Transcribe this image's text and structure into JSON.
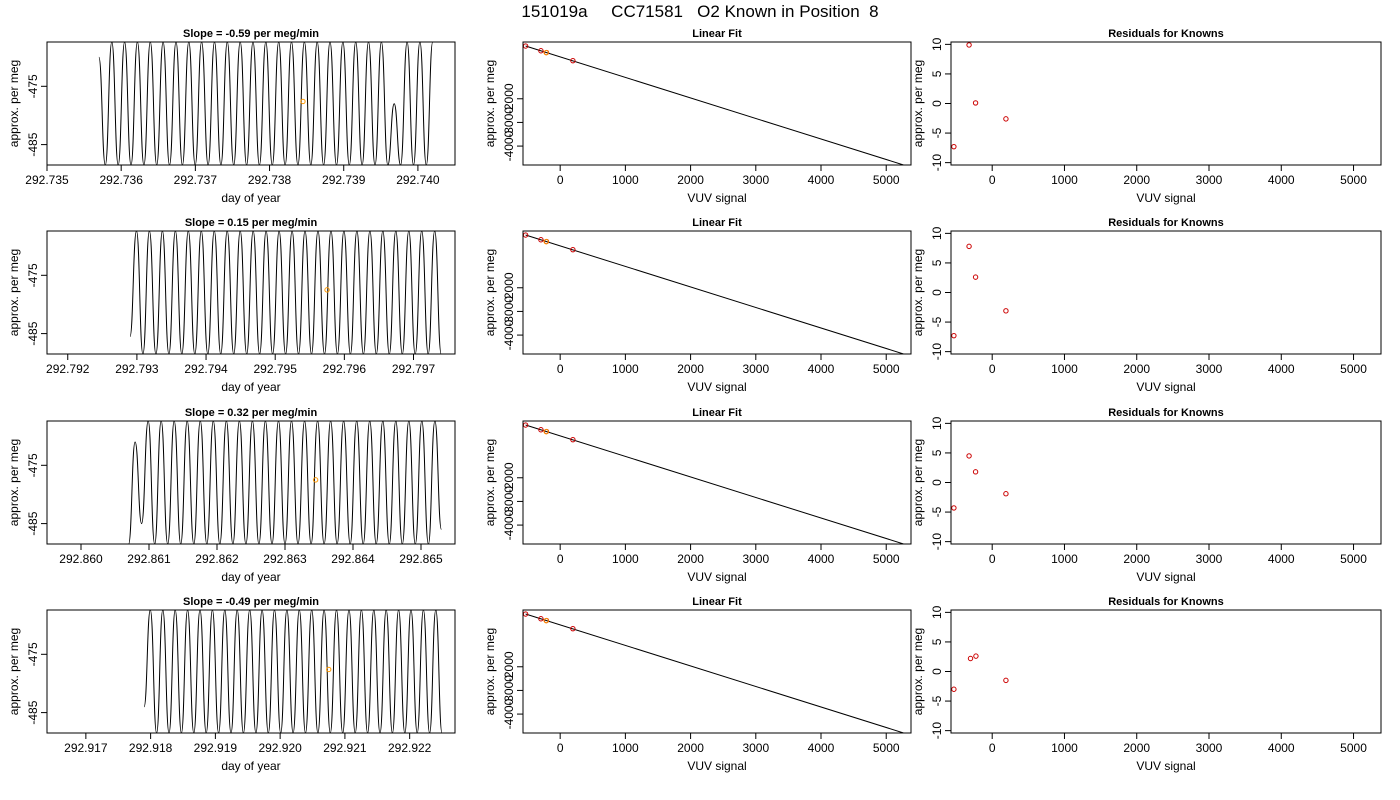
{
  "page": {
    "title": "151019a     CC71581   O2 Known in Position  8"
  },
  "chart_data": [
    {
      "type": "line",
      "row": 1,
      "column": "time_series",
      "title": "Slope =  -0.59  per meg/min",
      "xlabel": "day of year",
      "ylabel": "approx. per meg",
      "xlim": [
        292.735,
        292.7405
      ],
      "ylim": [
        -488.5,
        -467.4
      ],
      "xticks": [
        "292.735",
        "292.736",
        "292.737",
        "292.738",
        "292.739",
        "292.740"
      ],
      "yticks": [
        "-475",
        "-485"
      ],
      "x_start": 292.7357,
      "x_end": 292.7402,
      "series": [
        {
          "line_color": "#000000",
          "values": [
            -470,
            -488.5,
            -467.4,
            -488.5,
            -467.4,
            -488.5,
            -467.4,
            -488.5,
            -467.4,
            -488.5,
            -467.4,
            -488.5,
            -467.4,
            -488.5,
            -467.4,
            -488.5,
            -467.4,
            -488.5,
            -467.4,
            -488.5,
            -467.4,
            -488.5,
            -467.4,
            -488.5,
            -467.4,
            -488.5,
            -467.4,
            -488.5,
            -467.4,
            -488.5,
            -467.4,
            -488.5,
            -467.4,
            -488.5,
            -467.4,
            -488.5,
            -467.4,
            -488.5,
            -467.4,
            -488.5,
            -467.4,
            -488.5,
            -467.4,
            -488.5,
            -467.4,
            -488.5,
            -478,
            -488.5,
            -467.4,
            -488.5,
            -467.4,
            -488.5,
            -467.4
          ]
        }
      ],
      "marker": {
        "x": 292.73845,
        "y": -477.6,
        "color": "#ff9900"
      }
    },
    {
      "type": "scatter",
      "row": 1,
      "column": "linear_fit",
      "title": "Linear Fit",
      "xlabel": "VUV signal",
      "ylabel": "approx. per meg",
      "xlim": [
        -570,
        5380
      ],
      "ylim": [
        -4800,
        400
      ],
      "xticks": [
        0,
        1000,
        2000,
        3000,
        4000,
        5000
      ],
      "yticks": [
        -2000,
        -3000,
        -4000
      ],
      "fit_line": {
        "x": [
          -530,
          5290
        ],
        "y": [
          230,
          -4820
        ]
      },
      "points": [
        {
          "x": -530,
          "y": 230
        },
        {
          "x": -295,
          "y": 30
        },
        {
          "x": -210,
          "y": -45
        },
        {
          "x": 195,
          "y": -390
        }
      ],
      "highlight": {
        "x": -215,
        "y": -50,
        "color": "#ff9900"
      }
    },
    {
      "type": "scatter",
      "row": 1,
      "column": "residuals",
      "title": "Residuals for Knowns",
      "xlabel": "VUV signal",
      "ylabel": "approx. per meg",
      "xlim": [
        -570,
        5380
      ],
      "ylim": [
        -10.4,
        10.4
      ],
      "xticks": [
        0,
        1000,
        2000,
        3000,
        4000,
        5000
      ],
      "yticks": [
        10,
        5,
        0,
        -5,
        -10
      ],
      "points": [
        {
          "x": -530,
          "y": -7.3
        },
        {
          "x": -320,
          "y": 9.9
        },
        {
          "x": -230,
          "y": 0.1
        },
        {
          "x": 190,
          "y": -2.6
        }
      ]
    },
    {
      "type": "line",
      "row": 2,
      "column": "time_series",
      "title": "Slope =  0.15  per meg/min",
      "xlabel": "day of year",
      "ylabel": "approx. per meg",
      "xlim": [
        292.7917,
        292.7976
      ],
      "ylim": [
        -488.5,
        -467.4
      ],
      "xticks": [
        "292.792",
        "292.793",
        "292.794",
        "292.795",
        "292.796",
        "292.797"
      ],
      "yticks": [
        "-475",
        "-485"
      ],
      "x_start": 292.7929,
      "x_end": 292.7974,
      "series": [
        {
          "line_color": "#000000",
          "values": [
            -485.5,
            -467.4,
            -488.5,
            -467.4,
            -488.5,
            -467.4,
            -488.5,
            -467.4,
            -488.5,
            -467.4,
            -488.5,
            -467.4,
            -488.5,
            -467.4,
            -488.5,
            -467.4,
            -488.5,
            -467.4,
            -488.5,
            -467.4,
            -488.5,
            -467.4,
            -488.5,
            -467.4,
            -488.5,
            -467.4,
            -488.5,
            -467.4,
            -488.5,
            -467.4,
            -488.5,
            -467.4,
            -488.5,
            -467.4,
            -488.5,
            -467.4,
            -488.5,
            -467.4,
            -488.5,
            -467.4,
            -488.5,
            -467.4,
            -488.5,
            -467.4,
            -488.5,
            -467.4,
            -488.5,
            -467.4,
            -488.5
          ]
        }
      ],
      "marker": {
        "x": 292.79575,
        "y": -477.5,
        "color": "#ff9900"
      }
    },
    {
      "type": "scatter",
      "row": 2,
      "column": "linear_fit",
      "title": "Linear Fit",
      "xlabel": "VUV signal",
      "ylabel": "approx. per meg",
      "xlim": [
        -570,
        5380
      ],
      "ylim": [
        -4800,
        400
      ],
      "xticks": [
        0,
        1000,
        2000,
        3000,
        4000,
        5000
      ],
      "yticks": [
        -2000,
        -3000,
        -4000
      ],
      "fit_line": {
        "x": [
          -530,
          5290
        ],
        "y": [
          230,
          -4820
        ]
      },
      "points": [
        {
          "x": -530,
          "y": 230
        },
        {
          "x": -295,
          "y": 30
        },
        {
          "x": -210,
          "y": -45
        },
        {
          "x": 195,
          "y": -390
        }
      ],
      "highlight": {
        "x": -215,
        "y": -50,
        "color": "#ff9900"
      }
    },
    {
      "type": "scatter",
      "row": 2,
      "column": "residuals",
      "title": "Residuals for Knowns",
      "xlabel": "VUV signal",
      "ylabel": "approx. per meg",
      "xlim": [
        -570,
        5380
      ],
      "ylim": [
        -10.4,
        10.4
      ],
      "xticks": [
        0,
        1000,
        2000,
        3000,
        4000,
        5000
      ],
      "yticks": [
        10,
        5,
        0,
        -5,
        -10
      ],
      "points": [
        {
          "x": -530,
          "y": -7.3
        },
        {
          "x": -320,
          "y": 7.8
        },
        {
          "x": -230,
          "y": 2.6
        },
        {
          "x": 190,
          "y": -3.1
        }
      ]
    },
    {
      "type": "line",
      "row": 3,
      "column": "time_series",
      "title": "Slope =  0.32  per meg/min",
      "xlabel": "day of year",
      "ylabel": "approx. per meg",
      "xlim": [
        292.8595,
        292.8655
      ],
      "ylim": [
        -488.5,
        -467.4
      ],
      "xticks": [
        "292.860",
        "292.861",
        "292.862",
        "292.863",
        "292.864",
        "292.865"
      ],
      "yticks": [
        "-475",
        "-485"
      ],
      "x_start": 292.8607,
      "x_end": 292.8653,
      "series": [
        {
          "line_color": "#000000",
          "values": [
            -488.5,
            -471,
            -485,
            -467.4,
            -488.5,
            -467.4,
            -488.5,
            -467.4,
            -488.5,
            -467.4,
            -488.5,
            -467.4,
            -488.5,
            -467.4,
            -488.5,
            -467.4,
            -488.5,
            -467.4,
            -488.5,
            -467.4,
            -488.5,
            -467.4,
            -488.5,
            -467.4,
            -488.5,
            -467.4,
            -488.5,
            -467.4,
            -488.5,
            -467.4,
            -488.5,
            -467.4,
            -488.5,
            -467.4,
            -488.5,
            -467.4,
            -488.5,
            -467.4,
            -488.5,
            -467.4,
            -488.5,
            -467.4,
            -488.5,
            -467.4,
            -488.5,
            -467.4,
            -488.5,
            -467.4,
            -486
          ]
        }
      ],
      "marker": {
        "x": 292.86345,
        "y": -477.5,
        "color": "#ff9900"
      }
    },
    {
      "type": "scatter",
      "row": 3,
      "column": "linear_fit",
      "title": "Linear Fit",
      "xlabel": "VUV signal",
      "ylabel": "approx. per meg",
      "xlim": [
        -570,
        5380
      ],
      "ylim": [
        -4800,
        400
      ],
      "xticks": [
        0,
        1000,
        2000,
        3000,
        4000,
        5000
      ],
      "yticks": [
        -2000,
        -3000,
        -4000
      ],
      "fit_line": {
        "x": [
          -530,
          5290
        ],
        "y": [
          230,
          -4820
        ]
      },
      "points": [
        {
          "x": -530,
          "y": 230
        },
        {
          "x": -295,
          "y": 30
        },
        {
          "x": -210,
          "y": -45
        },
        {
          "x": 195,
          "y": -390
        }
      ],
      "highlight": {
        "x": -215,
        "y": -50,
        "color": "#ff9900"
      }
    },
    {
      "type": "scatter",
      "row": 3,
      "column": "residuals",
      "title": "Residuals for Knowns",
      "xlabel": "VUV signal",
      "ylabel": "approx. per meg",
      "xlim": [
        -570,
        5380
      ],
      "ylim": [
        -10.4,
        10.4
      ],
      "xticks": [
        0,
        1000,
        2000,
        3000,
        4000,
        5000
      ],
      "yticks": [
        10,
        5,
        0,
        -5,
        -10
      ],
      "points": [
        {
          "x": -530,
          "y": -4.3
        },
        {
          "x": -320,
          "y": 4.5
        },
        {
          "x": -230,
          "y": 1.8
        },
        {
          "x": 190,
          "y": -1.9
        }
      ]
    },
    {
      "type": "line",
      "row": 4,
      "column": "time_series",
      "title": "Slope =  -0.49  per meg/min",
      "xlabel": "day of year",
      "ylabel": "approx. per meg",
      "xlim": [
        292.9164,
        292.9227
      ],
      "ylim": [
        -488.5,
        -467.4
      ],
      "xticks": [
        "292.917",
        "292.918",
        "292.919",
        "292.920",
        "292.921",
        "292.922"
      ],
      "yticks": [
        "-475",
        "-485"
      ],
      "x_start": 292.9179,
      "x_end": 292.9225,
      "series": [
        {
          "line_color": "#000000",
          "values": [
            -484,
            -467.4,
            -488.5,
            -467.4,
            -488.5,
            -467.4,
            -488.5,
            -467.4,
            -488.5,
            -467.4,
            -488.5,
            -467.4,
            -488.5,
            -467.4,
            -488.5,
            -467.4,
            -488.5,
            -467.4,
            -488.5,
            -467.4,
            -488.5,
            -467.4,
            -488.5,
            -467.4,
            -488.5,
            -467.4,
            -488.5,
            -467.4,
            -488.5,
            -467.4,
            -488.5,
            -467.4,
            -488.5,
            -467.4,
            -488.5,
            -467.4,
            -488.5,
            -467.4,
            -488.5,
            -467.4,
            -488.5,
            -467.4,
            -488.5,
            -467.4,
            -488.5,
            -467.4,
            -488.5,
            -467.4,
            -488.5
          ]
        }
      ],
      "marker": {
        "x": 292.92075,
        "y": -477.6,
        "color": "#ff9900"
      }
    },
    {
      "type": "scatter",
      "row": 4,
      "column": "linear_fit",
      "title": "Linear Fit",
      "xlabel": "VUV signal",
      "ylabel": "approx. per meg",
      "xlim": [
        -570,
        5380
      ],
      "ylim": [
        -4800,
        400
      ],
      "xticks": [
        0,
        1000,
        2000,
        3000,
        4000,
        5000
      ],
      "yticks": [
        -2000,
        -3000,
        -4000
      ],
      "fit_line": {
        "x": [
          -530,
          5290
        ],
        "y": [
          230,
          -4820
        ]
      },
      "points": [
        {
          "x": -530,
          "y": 230
        },
        {
          "x": -295,
          "y": 30
        },
        {
          "x": -210,
          "y": -45
        },
        {
          "x": 195,
          "y": -390
        }
      ],
      "highlight": {
        "x": -215,
        "y": -50,
        "color": "#ff9900"
      }
    },
    {
      "type": "scatter",
      "row": 4,
      "column": "residuals",
      "title": "Residuals for Knowns",
      "xlabel": "VUV signal",
      "ylabel": "approx. per meg",
      "xlim": [
        -570,
        5380
      ],
      "ylim": [
        -10.4,
        10.4
      ],
      "xticks": [
        0,
        1000,
        2000,
        3000,
        4000,
        5000
      ],
      "yticks": [
        10,
        5,
        0,
        -5,
        -10
      ],
      "points": [
        {
          "x": -530,
          "y": -3.0
        },
        {
          "x": -300,
          "y": 2.2
        },
        {
          "x": -225,
          "y": 2.6
        },
        {
          "x": 190,
          "y": -1.5
        }
      ]
    }
  ]
}
